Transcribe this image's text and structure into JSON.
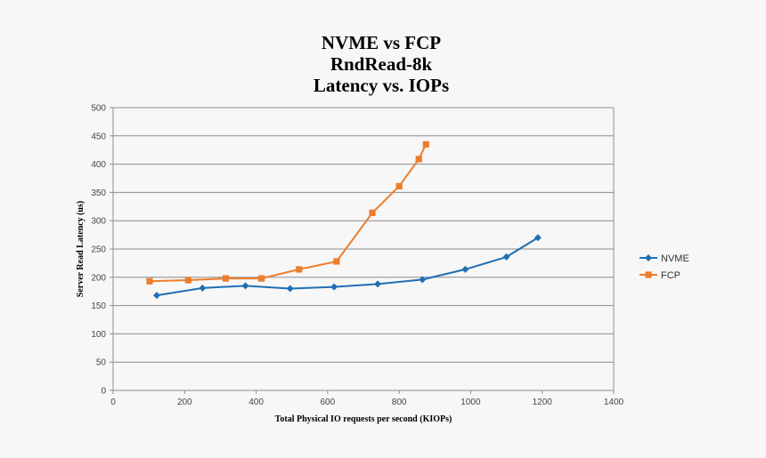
{
  "chart_data": {
    "type": "line",
    "title": [
      "NVME vs FCP",
      "RndRead-8k",
      "Latency vs. IOPs"
    ],
    "xlabel": "Total Physical IO requests per second (KIOPs)",
    "ylabel": "Server Read Latency (us)",
    "xlim": [
      0,
      1400
    ],
    "ylim": [
      0,
      500
    ],
    "xticks": [
      "0",
      "200",
      "400",
      "600",
      "800",
      "1000",
      "1200",
      "1400"
    ],
    "yticks": [
      "0",
      "50",
      "100",
      "150",
      "200",
      "250",
      "300",
      "350",
      "400",
      "450",
      "500"
    ],
    "grid": "horizontal",
    "legend_position": "right",
    "series": [
      {
        "name": "NVME",
        "color": "#1f6fb4",
        "marker": "diamond",
        "x": [
          122,
          250,
          370,
          495,
          618,
          740,
          865,
          985,
          1100,
          1188
        ],
        "y": [
          168,
          181,
          185,
          180,
          183,
          188,
          196,
          214,
          236,
          270
        ]
      },
      {
        "name": "FCP",
        "color": "#ec7d2a",
        "marker": "square",
        "x": [
          102,
          210,
          315,
          415,
          520,
          625,
          725,
          800,
          855,
          875
        ],
        "y": [
          193,
          195,
          198,
          198,
          214,
          228,
          314,
          361,
          409,
          435
        ]
      }
    ]
  }
}
